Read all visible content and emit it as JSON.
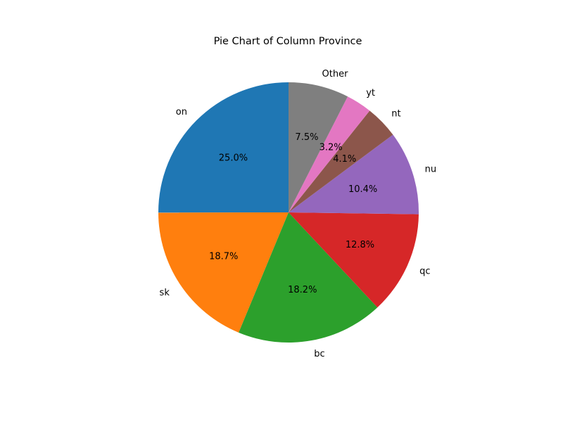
{
  "chart_data": {
    "type": "pie",
    "title": "Pie Chart of Column Province",
    "slices": [
      {
        "label": "on",
        "value": 25.0,
        "pct_label": "25.0%",
        "color": "#1f77b4"
      },
      {
        "label": "sk",
        "value": 18.7,
        "pct_label": "18.7%",
        "color": "#ff7f0e"
      },
      {
        "label": "bc",
        "value": 18.2,
        "pct_label": "18.2%",
        "color": "#2ca02c"
      },
      {
        "label": "qc",
        "value": 12.8,
        "pct_label": "12.8%",
        "color": "#d62728"
      },
      {
        "label": "nu",
        "value": 10.4,
        "pct_label": "10.4%",
        "color": "#9467bd"
      },
      {
        "label": "nt",
        "value": 4.1,
        "pct_label": "4.1%",
        "color": "#8c564b"
      },
      {
        "label": "yt",
        "value": 3.2,
        "pct_label": "3.2%",
        "color": "#e377c2"
      },
      {
        "label": "Other",
        "value": 7.5,
        "pct_label": "7.5%",
        "color": "#7f7f7f"
      }
    ],
    "start_angle_deg": 90,
    "direction": "counterclockwise"
  }
}
